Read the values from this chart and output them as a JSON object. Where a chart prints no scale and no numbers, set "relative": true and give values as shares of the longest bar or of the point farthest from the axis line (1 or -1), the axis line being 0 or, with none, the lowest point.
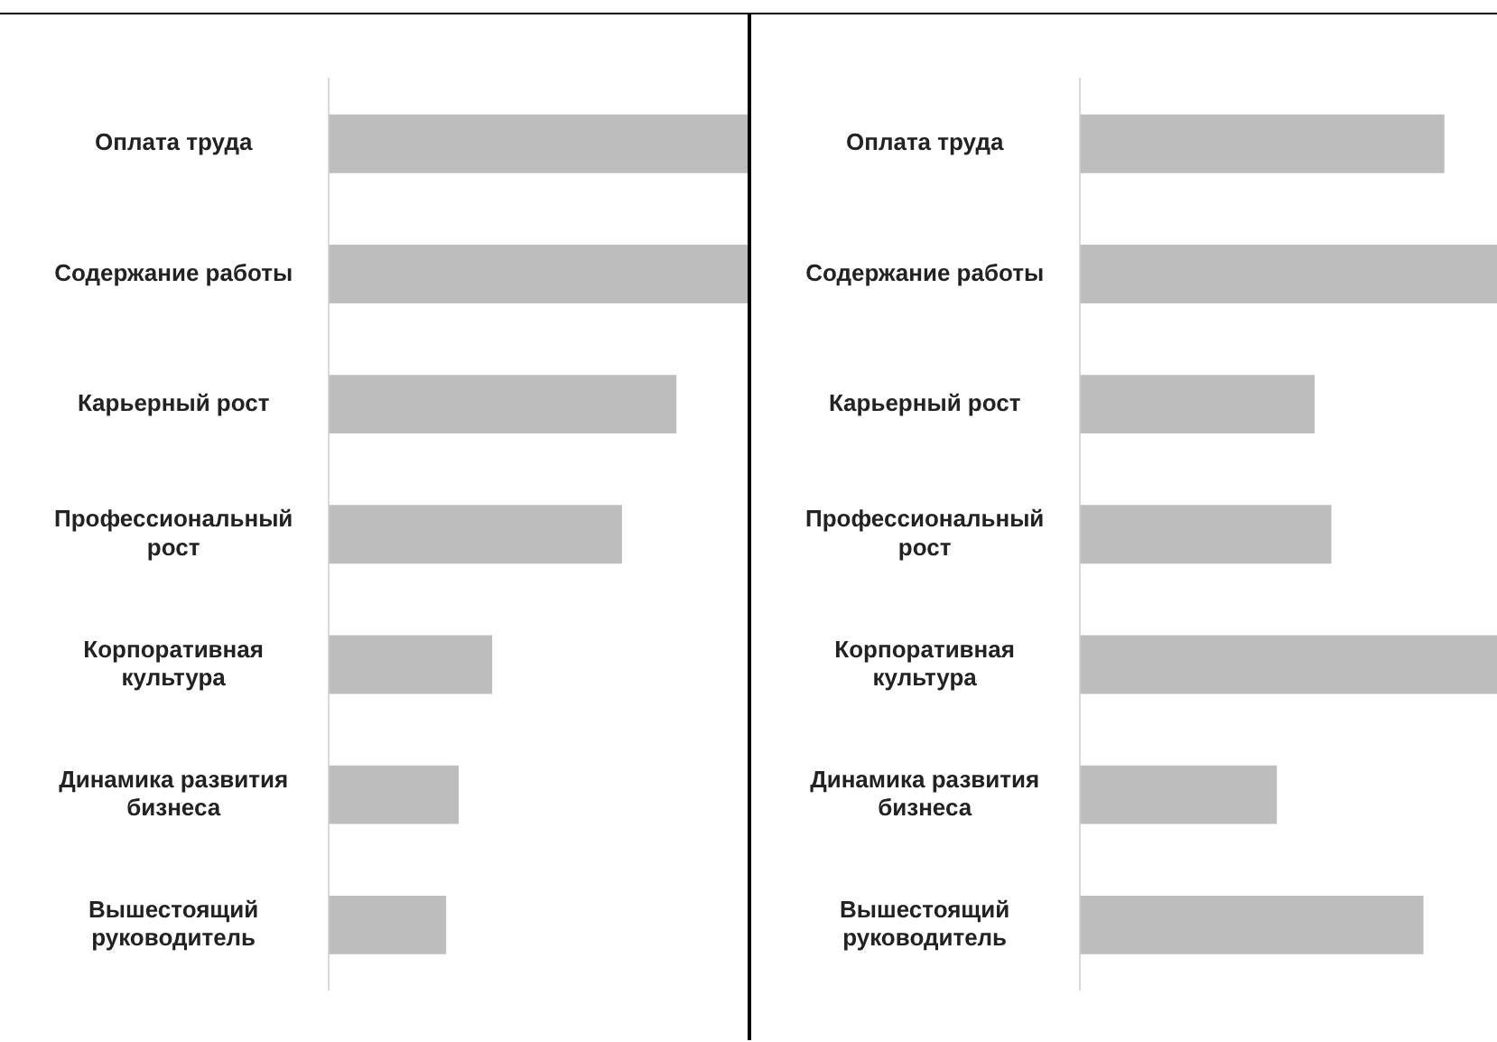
{
  "chart_data": [
    {
      "type": "bar",
      "orientation": "horizontal",
      "relative": true,
      "legend": false,
      "categories": [
        "Оплата труда",
        "Содержание работы",
        "Карьерный рост",
        "Профессиональный рост",
        "Корпоративная культура",
        "Динамика развития бизнеса",
        "Вышестоящий руководитель"
      ],
      "series": [
        {
          "color": "#bdbdbd",
          "values": [
            1,
            1,
            0.83,
            0.7,
            0.39,
            0.31,
            0.28
          ]
        }
      ]
    },
    {
      "type": "bar",
      "orientation": "horizontal",
      "relative": true,
      "legend": false,
      "categories": [
        "Оплата труда",
        "Содержание работы",
        "Карьерный рост",
        "Профессиональный рост",
        "Корпоративная культура",
        "Динамика развития бизнеса",
        "Вышестоящий руководитель"
      ],
      "series": [
        {
          "color": "#bdbdbd",
          "values": [
            0.87,
            1,
            0.56,
            0.6,
            1,
            0.47,
            0.82
          ]
        }
      ]
    }
  ]
}
